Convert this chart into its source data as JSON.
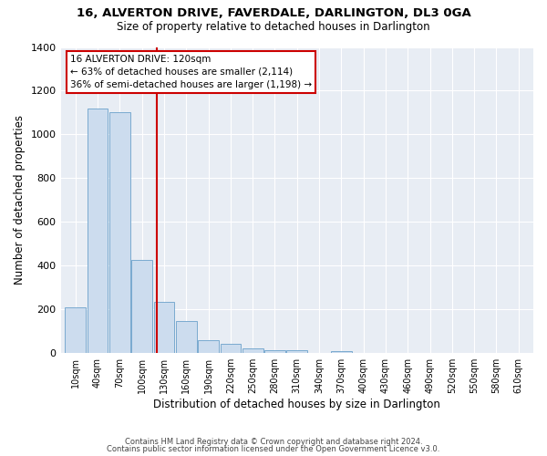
{
  "title": "16, ALVERTON DRIVE, FAVERDALE, DARLINGTON, DL3 0GA",
  "subtitle": "Size of property relative to detached houses in Darlington",
  "xlabel": "Distribution of detached houses by size in Darlington",
  "ylabel": "Number of detached properties",
  "bar_color": "#ccdcee",
  "bar_edge_color": "#7aaad0",
  "plot_bg_color": "#e8edf4",
  "fig_bg_color": "#ffffff",
  "grid_color": "#ffffff",
  "ann_box_color": "#cc0000",
  "annotation_title": "16 ALVERTON DRIVE: 120sqm",
  "annotation_line1": "← 63% of detached houses are smaller (2,114)",
  "annotation_line2": "36% of semi-detached houses are larger (1,198) →",
  "redline_x": 120,
  "categories": [
    10,
    40,
    70,
    100,
    130,
    160,
    190,
    220,
    250,
    280,
    310,
    340,
    370,
    400,
    430,
    460,
    490,
    520,
    550,
    580,
    610
  ],
  "values": [
    210,
    1120,
    1100,
    425,
    235,
    145,
    60,
    42,
    20,
    12,
    12,
    0,
    10,
    0,
    0,
    0,
    0,
    0,
    0,
    0,
    0
  ],
  "ylim": [
    0,
    1400
  ],
  "yticks": [
    0,
    200,
    400,
    600,
    800,
    1000,
    1200,
    1400
  ],
  "footnote1": "Contains HM Land Registry data © Crown copyright and database right 2024.",
  "footnote2": "Contains public sector information licensed under the Open Government Licence v3.0."
}
